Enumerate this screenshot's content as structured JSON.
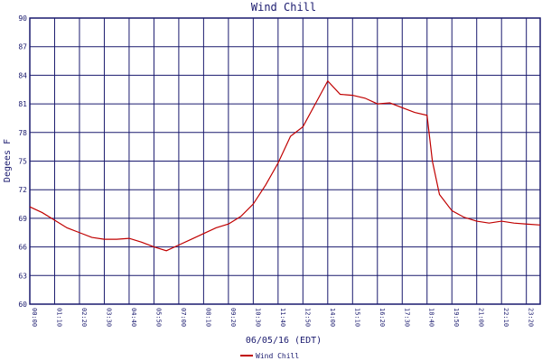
{
  "chart_data": {
    "type": "line",
    "title": "Wind Chill",
    "x_label": "06/05/16 (EDT)",
    "y_label": "Degees F",
    "x": [
      0,
      35,
      70,
      105,
      140,
      175,
      210,
      245,
      280,
      315,
      350,
      385,
      420,
      455,
      490,
      525,
      560,
      595,
      630,
      665,
      700,
      735,
      770,
      805,
      840,
      875,
      910,
      945,
      980,
      1015,
      1050,
      1085,
      1120,
      1135,
      1155,
      1190,
      1225,
      1260,
      1295,
      1330,
      1365,
      1400,
      1439
    ],
    "series": [
      {
        "name": "Wind Chill",
        "color": "#c00000",
        "values": [
          70.2,
          69.6,
          68.8,
          68.0,
          67.5,
          67.0,
          66.8,
          66.8,
          66.9,
          66.5,
          66.0,
          65.6,
          66.2,
          66.8,
          67.4,
          68.0,
          68.4,
          69.2,
          70.5,
          72.5,
          74.8,
          77.6,
          78.6,
          81.0,
          83.4,
          82.0,
          81.9,
          81.6,
          81.0,
          81.1,
          80.6,
          80.1,
          79.8,
          75.0,
          71.5,
          69.8,
          69.1,
          68.7,
          68.5,
          68.7,
          68.5,
          68.4,
          68.3
        ]
      }
    ],
    "xlim": [
      0,
      1439
    ],
    "xticks": [
      {
        "value": 0,
        "label": "00:00"
      },
      {
        "value": 70,
        "label": "01:10"
      },
      {
        "value": 140,
        "label": "02:20"
      },
      {
        "value": 210,
        "label": "03:30"
      },
      {
        "value": 280,
        "label": "04:40"
      },
      {
        "value": 350,
        "label": "05:50"
      },
      {
        "value": 420,
        "label": "07:00"
      },
      {
        "value": 490,
        "label": "08:10"
      },
      {
        "value": 560,
        "label": "09:20"
      },
      {
        "value": 630,
        "label": "10:30"
      },
      {
        "value": 700,
        "label": "11:40"
      },
      {
        "value": 770,
        "label": "12:50"
      },
      {
        "value": 840,
        "label": "14:00"
      },
      {
        "value": 910,
        "label": "15:10"
      },
      {
        "value": 980,
        "label": "16:20"
      },
      {
        "value": 1050,
        "label": "17:30"
      },
      {
        "value": 1120,
        "label": "18:40"
      },
      {
        "value": 1190,
        "label": "19:50"
      },
      {
        "value": 1260,
        "label": "21:00"
      },
      {
        "value": 1330,
        "label": "22:10"
      },
      {
        "value": 1400,
        "label": "23:20"
      },
      {
        "value": 1439,
        "label": "23:59"
      }
    ],
    "ylim": [
      60,
      90
    ],
    "yticks": [
      60,
      63,
      66,
      69,
      72,
      75,
      78,
      81,
      84,
      87,
      90
    ],
    "grid": true,
    "grid_color": "#1a1a6e",
    "legend": "bottom"
  }
}
